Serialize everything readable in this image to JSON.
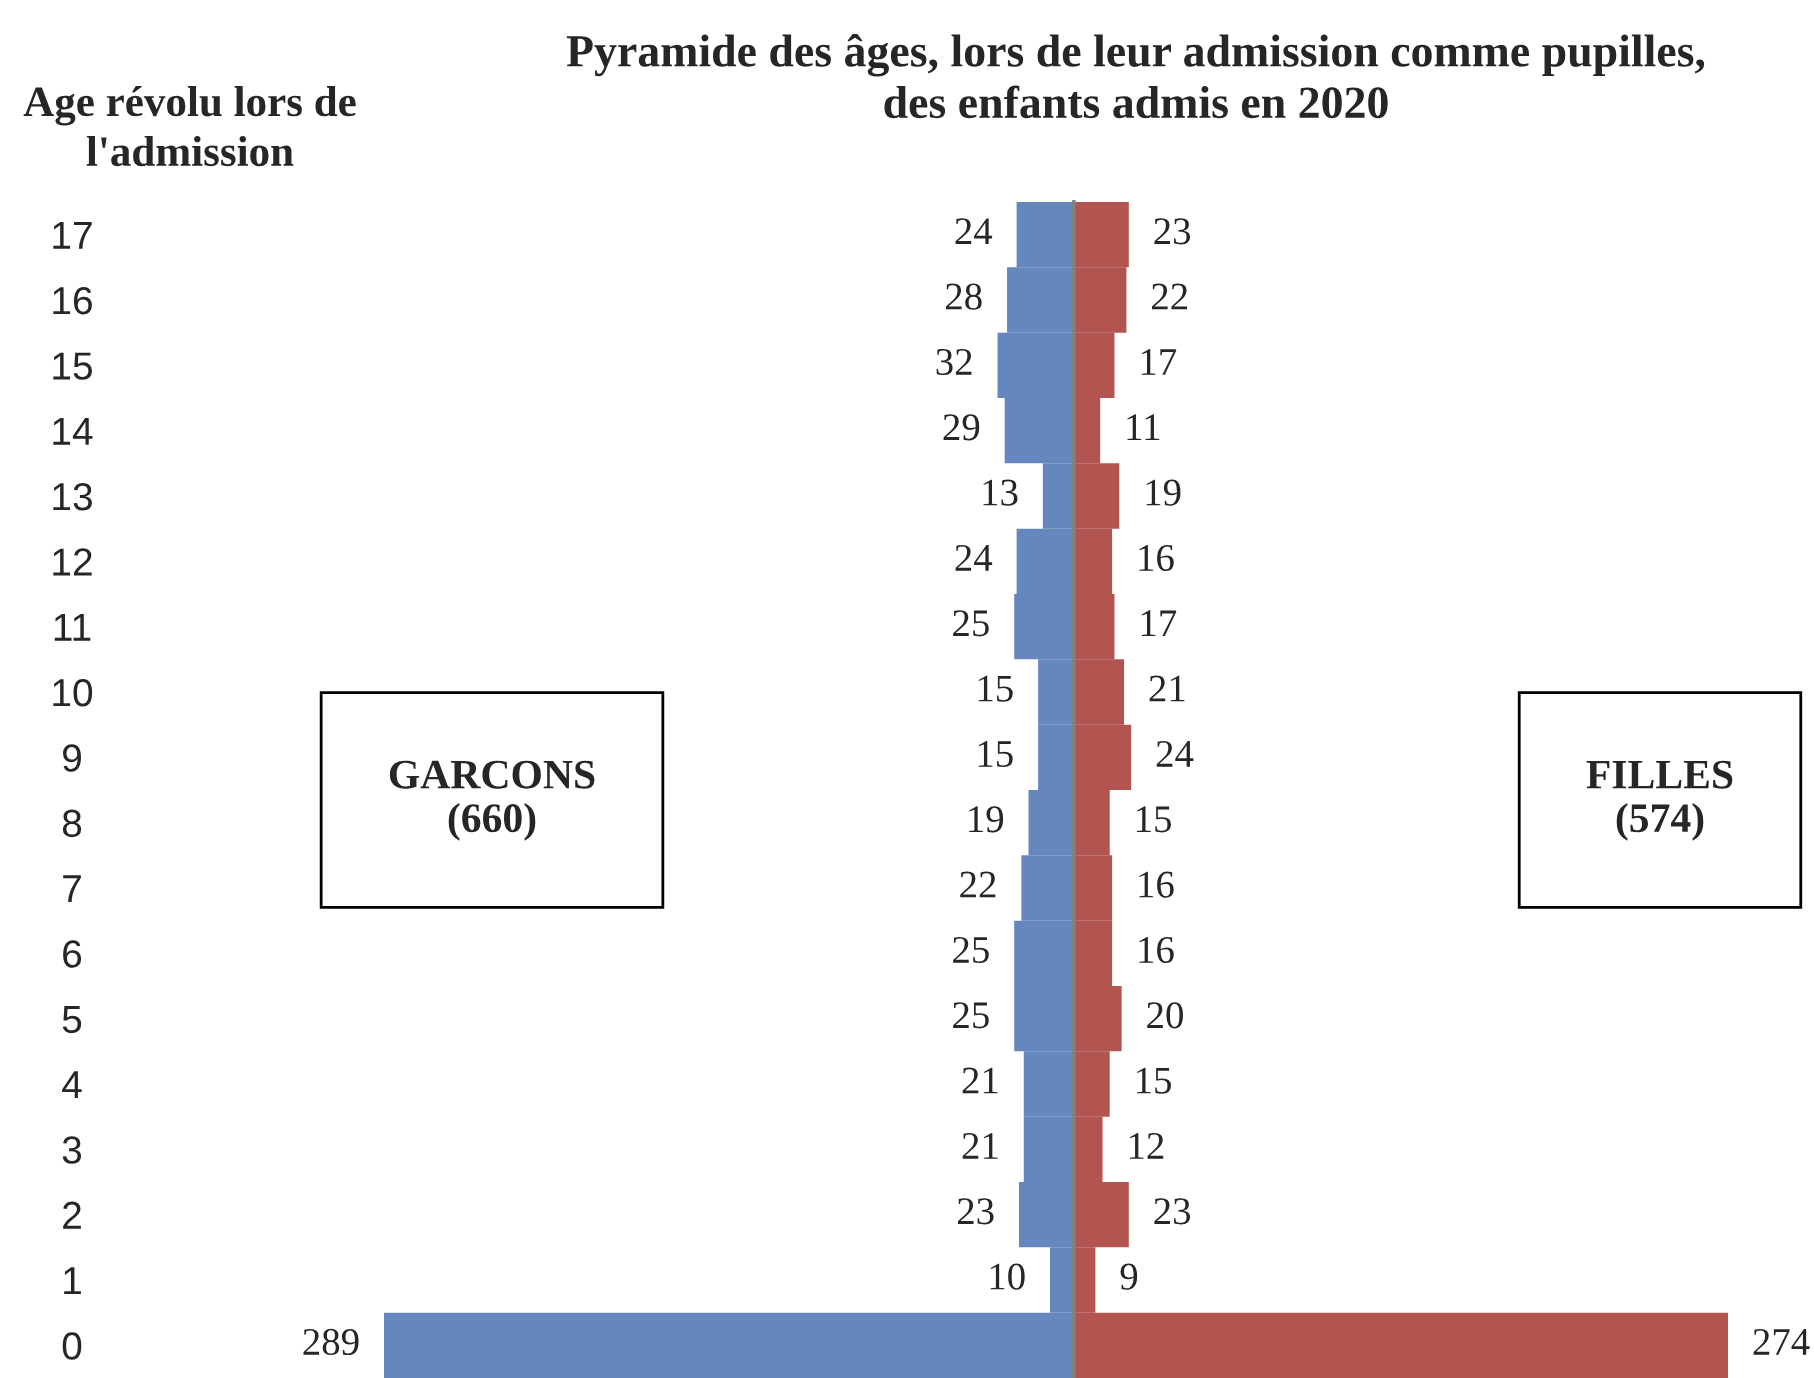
{
  "chart_data": [
    {
      "type": "bar",
      "orientation": "horizontal",
      "title": "Pyramide des âges, lors de leur admission comme pupilles,\ndes enfants admis en 2020",
      "ylabel": "Age révolu lors de\nl'admission",
      "categories": [
        "17",
        "16",
        "15",
        "14",
        "13",
        "12",
        "11",
        "10",
        "9",
        "8",
        "7",
        "6",
        "5",
        "4",
        "3",
        "2",
        "1",
        "0"
      ],
      "values": [
        24,
        28,
        32,
        29,
        13,
        24,
        25,
        15,
        15,
        19,
        22,
        25,
        25,
        21,
        21,
        23,
        10,
        289
      ],
      "color": "#6587bd",
      "data_labels": true,
      "xlim": [
        289,
        0
      ],
      "tick_labels": "y",
      "annotations": [
        "GARCONS\n(660)"
      ]
    },
    {
      "type": "bar",
      "orientation": "horizontal",
      "categories": [
        "17",
        "16",
        "15",
        "14",
        "13",
        "12",
        "11",
        "10",
        "9",
        "8",
        "7",
        "6",
        "5",
        "4",
        "3",
        "2",
        "1",
        "0"
      ],
      "values": [
        23,
        22,
        17,
        11,
        19,
        16,
        17,
        21,
        24,
        15,
        16,
        16,
        20,
        15,
        12,
        23,
        9,
        274
      ],
      "color": "#b25550",
      "data_labels": true,
      "xlim": [
        0,
        274
      ],
      "tick_labels": false,
      "annotations": [
        "FILLES\n(574)"
      ]
    }
  ]
}
